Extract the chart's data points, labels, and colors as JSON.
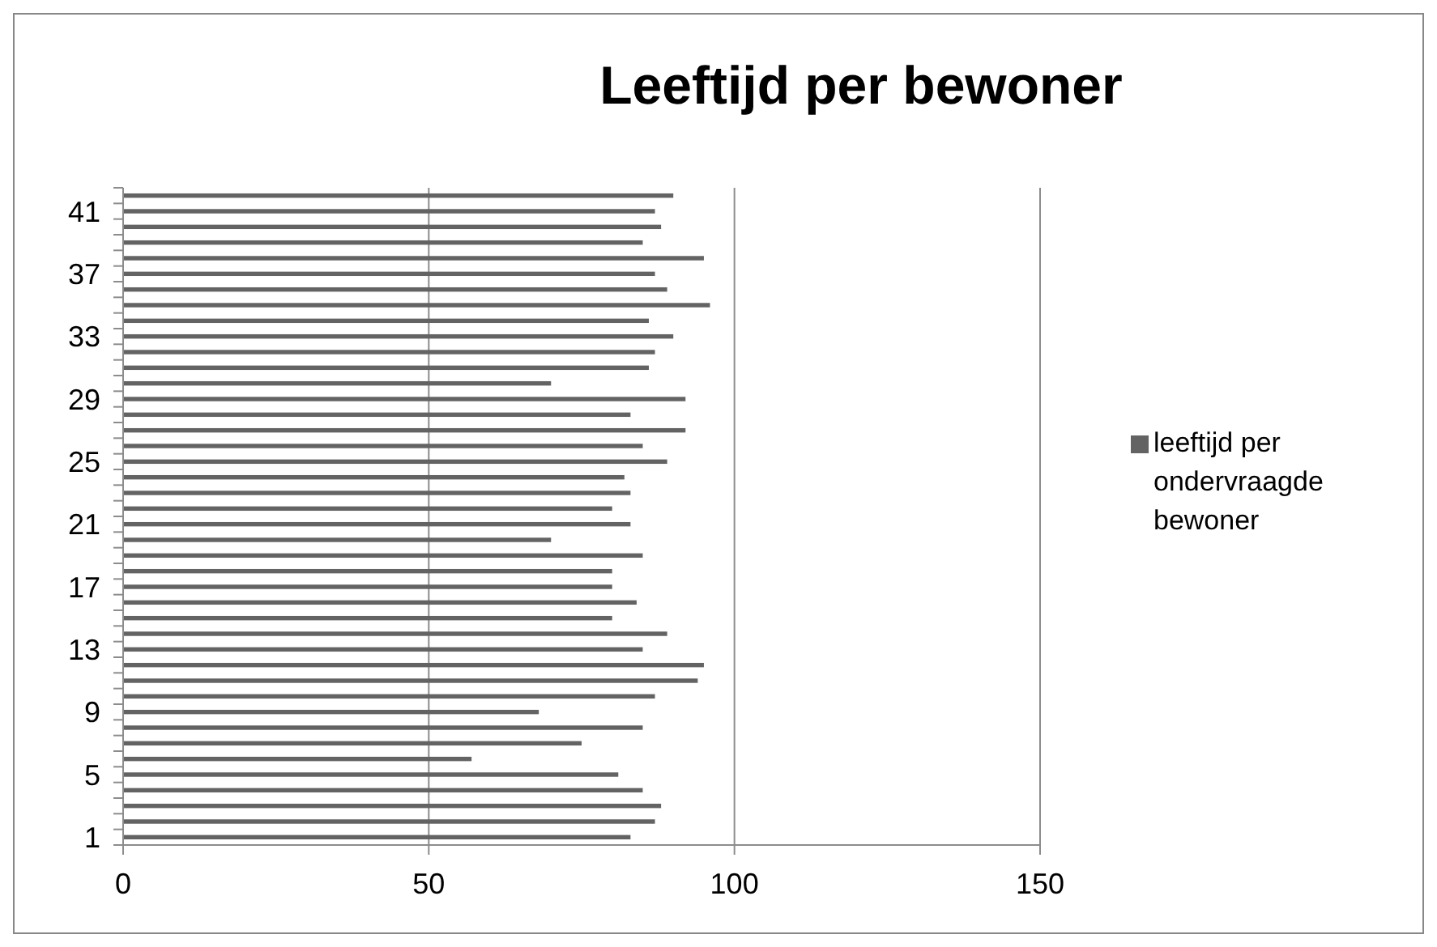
{
  "chart_data": {
    "type": "bar",
    "orientation": "horizontal",
    "title": "Leeftijd  per bewoner",
    "categories": [
      null,
      "41",
      null,
      null,
      null,
      "37",
      null,
      null,
      null,
      "33",
      null,
      null,
      null,
      "29",
      null,
      null,
      null,
      "25",
      null,
      null,
      null,
      "21",
      null,
      null,
      null,
      "17",
      null,
      null,
      null,
      "13",
      null,
      null,
      null,
      "9",
      null,
      null,
      null,
      "5",
      null,
      null,
      null,
      "1"
    ],
    "series": [
      {
        "name": "leeftijd per ondervraagde bewoner",
        "color": "#636363",
        "values": [
          90,
          87,
          88,
          85,
          95,
          87,
          89,
          96,
          86,
          90,
          87,
          86,
          70,
          92,
          83,
          92,
          85,
          89,
          82,
          83,
          80,
          83,
          70,
          85,
          80,
          80,
          84,
          80,
          89,
          85,
          95,
          94,
          87,
          68,
          85,
          75,
          57,
          81,
          85,
          88,
          87,
          83
        ]
      }
    ],
    "xlim": [
      0,
      150
    ],
    "xticks": [
      0,
      50,
      100,
      150
    ],
    "grid": "x",
    "legend": "right"
  }
}
